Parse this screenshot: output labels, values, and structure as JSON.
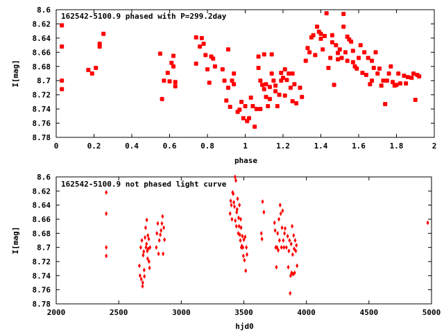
{
  "chart_data": [
    {
      "type": "scatter",
      "title": "162542-5100.9 phased with P=299.2day",
      "xlabel": "phase",
      "ylabel": "I[mag]",
      "xlim": [
        0,
        2
      ],
      "ylim": [
        8.78,
        8.6
      ],
      "y_inverted": true,
      "x_ticks": [
        "0",
        "0.2",
        "0.4",
        "0.6",
        "0.8",
        "1",
        "1.2",
        "1.4",
        "1.6",
        "1.8",
        "2"
      ],
      "y_ticks": [
        "8.6",
        "8.62",
        "8.64",
        "8.66",
        "8.68",
        "8.7",
        "8.72",
        "8.74",
        "8.76",
        "8.78"
      ],
      "marker": "filled-square",
      "color": "#ff0000",
      "points": [
        [
          0.03,
          8.622
        ],
        [
          0.03,
          8.652
        ],
        [
          0.03,
          8.7
        ],
        [
          0.03,
          8.712
        ],
        [
          0.17,
          8.685
        ],
        [
          0.19,
          8.69
        ],
        [
          0.21,
          8.682
        ],
        [
          0.23,
          8.648
        ],
        [
          0.23,
          8.652
        ],
        [
          0.25,
          8.634
        ],
        [
          0.55,
          8.662
        ],
        [
          0.56,
          8.726
        ],
        [
          0.57,
          8.7
        ],
        [
          0.59,
          8.689
        ],
        [
          0.6,
          8.701
        ],
        [
          0.61,
          8.675
        ],
        [
          0.62,
          8.665
        ],
        [
          0.62,
          8.68
        ],
        [
          0.63,
          8.702
        ],
        [
          0.63,
          8.708
        ],
        [
          0.74,
          8.676
        ],
        [
          0.74,
          8.639
        ],
        [
          0.76,
          8.652
        ],
        [
          0.77,
          8.64
        ],
        [
          0.78,
          8.648
        ],
        [
          0.79,
          8.664
        ],
        [
          0.8,
          8.684
        ],
        [
          0.81,
          8.703
        ],
        [
          0.82,
          8.666
        ],
        [
          0.83,
          8.669
        ],
        [
          0.84,
          8.68
        ],
        [
          0.88,
          8.684
        ],
        [
          0.89,
          8.7
        ],
        [
          0.9,
          8.728
        ],
        [
          0.91,
          8.656
        ],
        [
          0.91,
          8.71
        ],
        [
          0.92,
          8.737
        ],
        [
          0.93,
          8.7
        ],
        [
          0.94,
          8.705
        ],
        [
          0.94,
          8.69
        ],
        [
          0.96,
          8.744
        ],
        [
          0.97,
          8.741
        ],
        [
          0.98,
          8.73
        ],
        [
          0.99,
          8.753
        ],
        [
          1.0,
          8.736
        ],
        [
          1.01,
          8.757
        ],
        [
          1.02,
          8.753
        ],
        [
          1.03,
          8.724
        ],
        [
          1.04,
          8.736
        ],
        [
          1.05,
          8.765
        ],
        [
          1.06,
          8.74
        ],
        [
          1.07,
          8.682
        ],
        [
          1.07,
          8.666
        ],
        [
          1.08,
          8.7
        ],
        [
          1.08,
          8.74
        ],
        [
          1.09,
          8.706
        ],
        [
          1.1,
          8.663
        ],
        [
          1.1,
          8.712
        ],
        [
          1.11,
          8.705
        ],
        [
          1.11,
          8.723
        ],
        [
          1.12,
          8.736
        ],
        [
          1.13,
          8.726
        ],
        [
          1.13,
          8.709
        ],
        [
          1.14,
          8.69
        ],
        [
          1.14,
          8.663
        ],
        [
          1.15,
          8.7
        ],
        [
          1.16,
          8.715
        ],
        [
          1.16,
          8.707
        ],
        [
          1.17,
          8.736
        ],
        [
          1.18,
          8.72
        ],
        [
          1.19,
          8.7
        ],
        [
          1.19,
          8.689
        ],
        [
          1.2,
          8.696
        ],
        [
          1.21,
          8.721
        ],
        [
          1.21,
          8.684
        ],
        [
          1.22,
          8.699
        ],
        [
          1.23,
          8.69
        ],
        [
          1.24,
          8.71
        ],
        [
          1.25,
          8.729
        ],
        [
          1.25,
          8.69
        ],
        [
          1.26,
          8.705
        ],
        [
          1.27,
          8.732
        ],
        [
          1.29,
          8.71
        ],
        [
          1.3,
          8.723
        ],
        [
          1.32,
          8.672
        ],
        [
          1.33,
          8.654
        ],
        [
          1.34,
          8.66
        ],
        [
          1.35,
          8.639
        ],
        [
          1.36,
          8.636
        ],
        [
          1.37,
          8.664
        ],
        [
          1.38,
          8.624
        ],
        [
          1.39,
          8.631
        ],
        [
          1.4,
          8.641
        ],
        [
          1.4,
          8.634
        ],
        [
          1.41,
          8.656
        ],
        [
          1.42,
          8.637
        ],
        [
          1.43,
          8.605
        ],
        [
          1.44,
          8.682
        ],
        [
          1.45,
          8.668
        ],
        [
          1.46,
          8.636
        ],
        [
          1.46,
          8.646
        ],
        [
          1.47,
          8.706
        ],
        [
          1.48,
          8.65
        ],
        [
          1.49,
          8.661
        ],
        [
          1.49,
          8.67
        ],
        [
          1.5,
          8.656
        ],
        [
          1.51,
          8.668
        ],
        [
          1.52,
          8.606
        ],
        [
          1.52,
          8.624
        ],
        [
          1.53,
          8.66
        ],
        [
          1.54,
          8.638
        ],
        [
          1.54,
          8.672
        ],
        [
          1.55,
          8.642
        ],
        [
          1.56,
          8.645
        ],
        [
          1.57,
          8.658
        ],
        [
          1.57,
          8.674
        ],
        [
          1.58,
          8.68
        ],
        [
          1.59,
          8.683
        ],
        [
          1.6,
          8.668
        ],
        [
          1.61,
          8.65
        ],
        [
          1.62,
          8.689
        ],
        [
          1.63,
          8.66
        ],
        [
          1.64,
          8.692
        ],
        [
          1.65,
          8.668
        ],
        [
          1.66,
          8.705
        ],
        [
          1.67,
          8.7
        ],
        [
          1.67,
          8.672
        ],
        [
          1.68,
          8.682
        ],
        [
          1.69,
          8.66
        ],
        [
          1.7,
          8.69
        ],
        [
          1.71,
          8.683
        ],
        [
          1.72,
          8.707
        ],
        [
          1.73,
          8.7
        ],
        [
          1.74,
          8.733
        ],
        [
          1.75,
          8.7
        ],
        [
          1.76,
          8.69
        ],
        [
          1.77,
          8.68
        ],
        [
          1.78,
          8.702
        ],
        [
          1.79,
          8.707
        ],
        [
          1.8,
          8.706
        ],
        [
          1.81,
          8.69
        ],
        [
          1.82,
          8.704
        ],
        [
          1.84,
          8.693
        ],
        [
          1.85,
          8.704
        ],
        [
          1.86,
          8.695
        ],
        [
          1.88,
          8.696
        ],
        [
          1.89,
          8.69
        ],
        [
          1.9,
          8.727
        ],
        [
          1.91,
          8.692
        ],
        [
          1.92,
          8.694
        ]
      ]
    },
    {
      "type": "scatter",
      "title": "162542-5100.9 not phased light curve",
      "xlabel": "hjd0",
      "ylabel": "I[mag]",
      "xlim": [
        2000,
        5000
      ],
      "ylim": [
        8.78,
        8.6
      ],
      "y_inverted": true,
      "x_ticks": [
        "2000",
        "2500",
        "3000",
        "3500",
        "4000",
        "4500",
        "5000"
      ],
      "y_ticks": [
        "8.6",
        "8.62",
        "8.64",
        "8.66",
        "8.68",
        "8.7",
        "8.72",
        "8.74",
        "8.76",
        "8.78"
      ],
      "marker": "diamond",
      "color": "#ff0000",
      "points": [
        [
          2400,
          8.622
        ],
        [
          2400,
          8.652
        ],
        [
          2400,
          8.7
        ],
        [
          2400,
          8.712
        ],
        [
          2665,
          8.726
        ],
        [
          2670,
          8.74
        ],
        [
          2676,
          8.7
        ],
        [
          2680,
          8.745
        ],
        [
          2685,
          8.69
        ],
        [
          2690,
          8.755
        ],
        [
          2692,
          8.75
        ],
        [
          2695,
          8.711
        ],
        [
          2700,
          8.706
        ],
        [
          2703,
          8.732
        ],
        [
          2705,
          8.741
        ],
        [
          2710,
          8.686
        ],
        [
          2715,
          8.672
        ],
        [
          2718,
          8.7
        ],
        [
          2722,
          8.695
        ],
        [
          2724,
          8.661
        ],
        [
          2728,
          8.705
        ],
        [
          2731,
          8.716
        ],
        [
          2733,
          8.683
        ],
        [
          2736,
          8.702
        ],
        [
          2740,
          8.688
        ],
        [
          2742,
          8.72
        ],
        [
          2746,
          8.729
        ],
        [
          2750,
          8.7
        ],
        [
          2800,
          8.7
        ],
        [
          2805,
          8.68
        ],
        [
          2812,
          8.666
        ],
        [
          2818,
          8.709
        ],
        [
          2824,
          8.69
        ],
        [
          2832,
          8.682
        ],
        [
          2838,
          8.676
        ],
        [
          2845,
          8.666
        ],
        [
          2850,
          8.656
        ],
        [
          2855,
          8.709
        ],
        [
          2860,
          8.672
        ],
        [
          2866,
          8.689
        ],
        [
          3390,
          8.652
        ],
        [
          3395,
          8.634
        ],
        [
          3400,
          8.64
        ],
        [
          3405,
          8.66
        ],
        [
          3410,
          8.622
        ],
        [
          3415,
          8.624
        ],
        [
          3420,
          8.636
        ],
        [
          3425,
          8.642
        ],
        [
          3430,
          8.6
        ],
        [
          3432,
          8.662
        ],
        [
          3436,
          8.605
        ],
        [
          3440,
          8.67
        ],
        [
          3443,
          8.65
        ],
        [
          3446,
          8.646
        ],
        [
          3450,
          8.631
        ],
        [
          3455,
          8.68
        ],
        [
          3458,
          8.658
        ],
        [
          3462,
          8.67
        ],
        [
          3465,
          8.64
        ],
        [
          3468,
          8.682
        ],
        [
          3472,
          8.69
        ],
        [
          3475,
          8.66
        ],
        [
          3478,
          8.672
        ],
        [
          3480,
          8.7
        ],
        [
          3484,
          8.698
        ],
        [
          3488,
          8.684
        ],
        [
          3492,
          8.7
        ],
        [
          3496,
          8.712
        ],
        [
          3500,
          8.689
        ],
        [
          3505,
          8.718
        ],
        [
          3510,
          8.685
        ],
        [
          3515,
          8.733
        ],
        [
          3520,
          8.7
        ],
        [
          3525,
          8.71
        ],
        [
          3640,
          8.68
        ],
        [
          3645,
          8.688
        ],
        [
          3650,
          8.635
        ],
        [
          3660,
          8.65
        ],
        [
          3745,
          8.665
        ],
        [
          3750,
          8.676
        ],
        [
          3755,
          8.7
        ],
        [
          3760,
          8.728
        ],
        [
          3765,
          8.7
        ],
        [
          3770,
          8.68
        ],
        [
          3775,
          8.704
        ],
        [
          3780,
          8.66
        ],
        [
          3785,
          8.69
        ],
        [
          3790,
          8.64
        ],
        [
          3795,
          8.652
        ],
        [
          3800,
          8.7
        ],
        [
          3805,
          8.672
        ],
        [
          3810,
          8.648
        ],
        [
          3815,
          8.69
        ],
        [
          3820,
          8.7
        ],
        [
          3825,
          8.68
        ],
        [
          3830,
          8.673
        ],
        [
          3840,
          8.7
        ],
        [
          3850,
          8.684
        ],
        [
          3855,
          8.728
        ],
        [
          3860,
          8.705
        ],
        [
          3865,
          8.69
        ],
        [
          3870,
          8.765
        ],
        [
          3874,
          8.74
        ],
        [
          3878,
          8.695
        ],
        [
          3882,
          8.736
        ],
        [
          3886,
          8.67
        ],
        [
          3890,
          8.71
        ],
        [
          3894,
          8.738
        ],
        [
          3898,
          8.683
        ],
        [
          3902,
          8.702
        ],
        [
          3906,
          8.736
        ],
        [
          3910,
          8.69
        ],
        [
          3915,
          8.705
        ],
        [
          3920,
          8.697
        ],
        [
          3925,
          8.726
        ],
        [
          4970,
          8.665
        ]
      ]
    }
  ]
}
